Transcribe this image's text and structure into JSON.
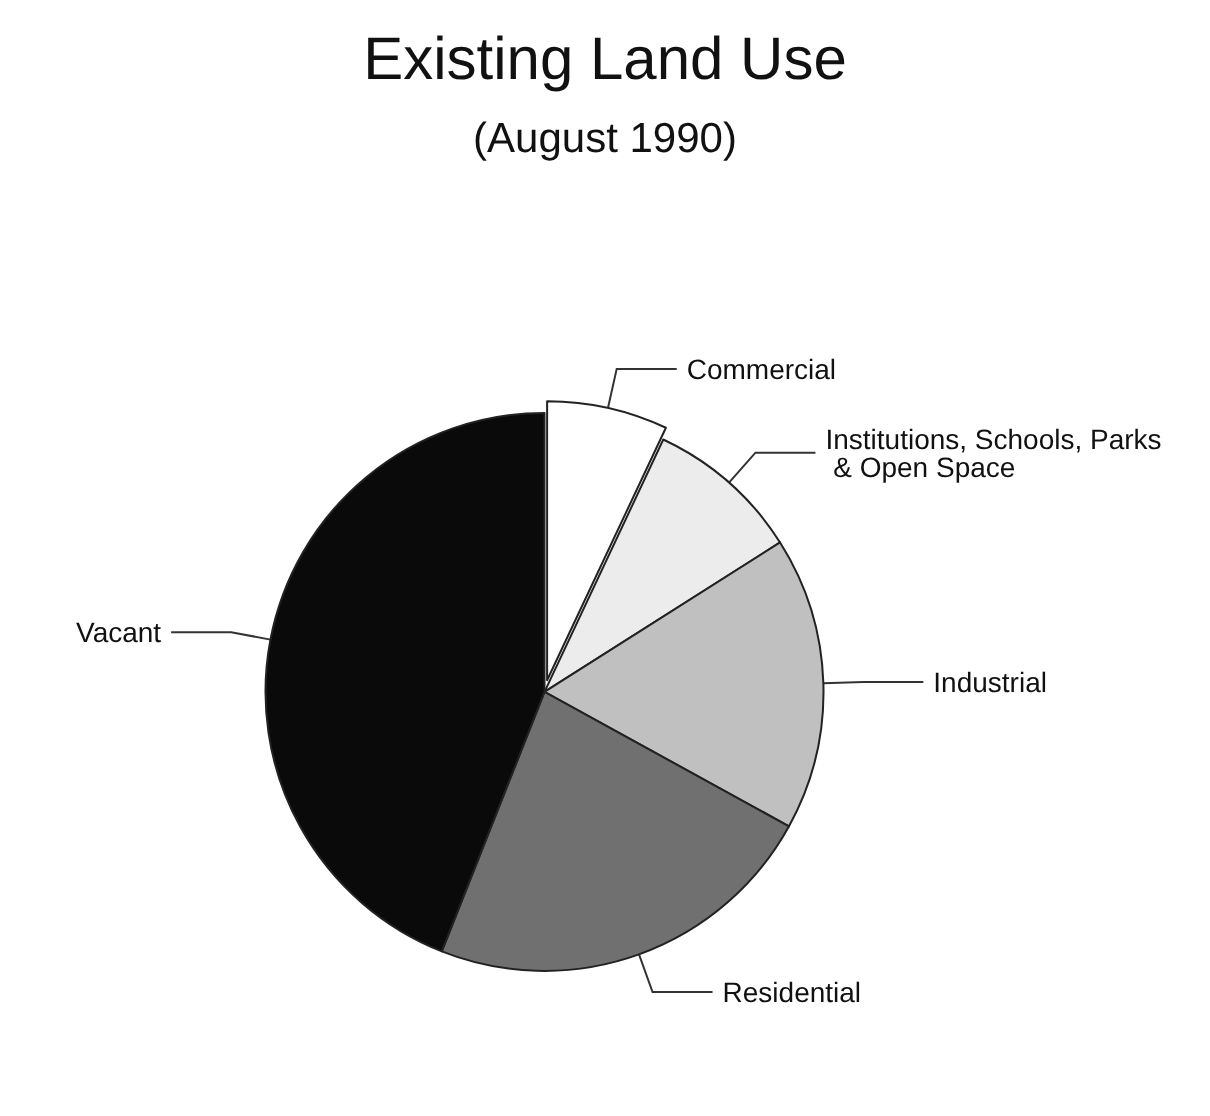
{
  "chart_data": {
    "type": "pie",
    "title": "Existing Land Use",
    "subtitle": "(August 1990)",
    "categories": [
      "Commercial",
      "Institutions, Schools, Parks & Open Space",
      "Industrial",
      "Residential",
      "Vacant"
    ],
    "values": [
      7,
      9,
      17,
      23,
      44
    ],
    "colors": [
      "#ffffff",
      "#ececec",
      "#c0c0c0",
      "#707070",
      "#0a0a0a"
    ],
    "legend": false
  }
}
